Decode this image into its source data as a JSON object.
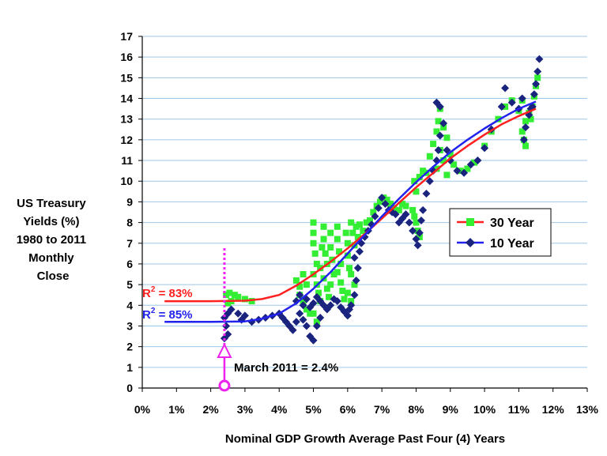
{
  "chart_data": {
    "type": "scatter",
    "title": "",
    "ylabel_lines": [
      "US Treasury",
      "Yields (%)",
      "1980 to 2011",
      "Monthly",
      "Close"
    ],
    "xlabel": "Nominal GDP Growth Average Past Four (4) Years",
    "xlim": [
      0,
      13
    ],
    "ylim": [
      0,
      17
    ],
    "x_ticks": [
      0,
      1,
      2,
      3,
      4,
      5,
      6,
      7,
      8,
      9,
      10,
      11,
      12,
      13
    ],
    "x_tick_labels": [
      "0%",
      "1%",
      "2%",
      "3%",
      "4%",
      "5%",
      "6%",
      "7%",
      "8%",
      "9%",
      "10%",
      "11%",
      "12%",
      "13%"
    ],
    "y_ticks": [
      0,
      1,
      2,
      3,
      4,
      5,
      6,
      7,
      8,
      9,
      10,
      11,
      12,
      13,
      14,
      15,
      16,
      17
    ],
    "y_tick_labels": [
      "0",
      "1",
      "2",
      "3",
      "4",
      "5",
      "6",
      "7",
      "8",
      "9",
      "10",
      "11",
      "12",
      "13",
      "14",
      "15",
      "16",
      "17"
    ],
    "grid": "horizontal",
    "legend_position": "right-middle",
    "series": [
      {
        "name": "30 Year",
        "color": "#33ee33",
        "marker": "square",
        "points": [
          [
            2.45,
            4.5
          ],
          [
            2.55,
            4.6
          ],
          [
            2.7,
            4.5
          ],
          [
            2.8,
            4.4
          ],
          [
            2.6,
            4.2
          ],
          [
            3.0,
            4.3
          ],
          [
            3.2,
            4.2
          ],
          [
            2.5,
            4.1
          ],
          [
            4.5,
            5.2
          ],
          [
            4.6,
            4.9
          ],
          [
            4.7,
            5.5
          ],
          [
            4.8,
            5.0
          ],
          [
            4.6,
            4.5
          ],
          [
            4.7,
            4.2
          ],
          [
            4.8,
            3.8
          ],
          [
            4.9,
            3.6
          ],
          [
            5.0,
            8.0
          ],
          [
            5.0,
            7.5
          ],
          [
            5.0,
            7.0
          ],
          [
            5.05,
            6.5
          ],
          [
            5.1,
            6.0
          ],
          [
            5.0,
            5.5
          ],
          [
            5.1,
            5.0
          ],
          [
            5.15,
            4.6
          ],
          [
            5.2,
            4.2
          ],
          [
            5.0,
            3.6
          ],
          [
            5.1,
            3.2
          ],
          [
            5.2,
            5.8
          ],
          [
            5.25,
            6.8
          ],
          [
            5.3,
            7.8
          ],
          [
            5.3,
            7.2
          ],
          [
            5.35,
            6.5
          ],
          [
            5.4,
            6.0
          ],
          [
            5.3,
            5.3
          ],
          [
            5.4,
            4.8
          ],
          [
            5.45,
            4.4
          ],
          [
            5.5,
            7.5
          ],
          [
            5.5,
            6.8
          ],
          [
            5.55,
            6.2
          ],
          [
            5.6,
            5.5
          ],
          [
            5.5,
            5.0
          ],
          [
            5.7,
            7.8
          ],
          [
            5.7,
            7.2
          ],
          [
            5.75,
            6.6
          ],
          [
            5.8,
            6.0
          ],
          [
            5.7,
            5.6
          ],
          [
            5.8,
            5.1
          ],
          [
            5.85,
            4.7
          ],
          [
            5.9,
            4.3
          ],
          [
            5.95,
            7.5
          ],
          [
            6.0,
            7.0
          ],
          [
            6.0,
            6.4
          ],
          [
            6.05,
            5.8
          ],
          [
            6.1,
            8.0
          ],
          [
            6.15,
            7.5
          ],
          [
            6.2,
            6.9
          ],
          [
            6.1,
            5.5
          ],
          [
            6.2,
            5.0
          ],
          [
            6.0,
            4.6
          ],
          [
            6.1,
            4.2
          ],
          [
            6.25,
            7.8
          ],
          [
            6.3,
            7.3
          ],
          [
            6.35,
            7.9
          ],
          [
            6.45,
            7.6
          ],
          [
            6.55,
            8.0
          ],
          [
            6.65,
            8.1
          ],
          [
            6.75,
            8.5
          ],
          [
            6.85,
            8.8
          ],
          [
            6.95,
            9.0
          ],
          [
            7.05,
            9.2
          ],
          [
            7.15,
            9.1
          ],
          [
            7.25,
            8.9
          ],
          [
            7.35,
            8.7
          ],
          [
            7.5,
            8.6
          ],
          [
            7.6,
            8.9
          ],
          [
            7.7,
            8.8
          ],
          [
            7.9,
            8.6
          ],
          [
            7.95,
            8.3
          ],
          [
            8.0,
            8.0
          ],
          [
            8.05,
            7.6
          ],
          [
            8.1,
            7.3
          ],
          [
            8.0,
            9.5
          ],
          [
            7.95,
            10.0
          ],
          [
            8.1,
            10.2
          ],
          [
            8.2,
            10.5
          ],
          [
            8.3,
            10.4
          ],
          [
            8.4,
            11.2
          ],
          [
            8.5,
            11.8
          ],
          [
            8.6,
            12.4
          ],
          [
            8.65,
            12.9
          ],
          [
            8.7,
            13.5
          ],
          [
            8.8,
            12.6
          ],
          [
            8.9,
            12.1
          ],
          [
            8.7,
            11.5
          ],
          [
            8.8,
            11.0
          ],
          [
            8.6,
            10.6
          ],
          [
            8.9,
            10.3
          ],
          [
            9.0,
            11.3
          ],
          [
            9.1,
            10.8
          ],
          [
            9.3,
            10.5
          ],
          [
            9.5,
            10.6
          ],
          [
            9.7,
            10.9
          ],
          [
            10.0,
            11.7
          ],
          [
            10.2,
            12.4
          ],
          [
            10.4,
            13.0
          ],
          [
            10.6,
            13.6
          ],
          [
            10.8,
            13.9
          ],
          [
            11.0,
            13.4
          ],
          [
            11.1,
            13.9
          ],
          [
            11.2,
            12.9
          ],
          [
            11.3,
            13.3
          ],
          [
            11.35,
            13.0
          ],
          [
            11.4,
            13.6
          ],
          [
            11.45,
            14.1
          ],
          [
            11.5,
            14.6
          ],
          [
            11.55,
            15.0
          ],
          [
            11.1,
            12.4
          ],
          [
            11.15,
            12.0
          ],
          [
            11.2,
            11.7
          ]
        ]
      },
      {
        "name": "10 Year",
        "color": "#1a237e",
        "marker": "diamond",
        "points": [
          [
            2.4,
            3.4
          ],
          [
            2.45,
            3.0
          ],
          [
            2.5,
            2.6
          ],
          [
            2.4,
            2.4
          ],
          [
            2.5,
            3.6
          ],
          [
            2.6,
            3.8
          ],
          [
            2.8,
            3.6
          ],
          [
            3.0,
            3.5
          ],
          [
            2.9,
            3.3
          ],
          [
            3.2,
            3.2
          ],
          [
            3.4,
            3.3
          ],
          [
            3.6,
            3.4
          ],
          [
            3.8,
            3.5
          ],
          [
            4.0,
            3.6
          ],
          [
            4.1,
            3.4
          ],
          [
            4.2,
            3.2
          ],
          [
            4.3,
            3.0
          ],
          [
            4.4,
            2.8
          ],
          [
            4.5,
            3.2
          ],
          [
            4.6,
            3.6
          ],
          [
            4.7,
            3.3
          ],
          [
            4.8,
            3.0
          ],
          [
            4.9,
            2.5
          ],
          [
            5.0,
            2.3
          ],
          [
            5.1,
            3.0
          ],
          [
            5.2,
            3.4
          ],
          [
            4.5,
            4.2
          ],
          [
            4.6,
            4.5
          ],
          [
            4.7,
            4.0
          ],
          [
            4.8,
            4.3
          ],
          [
            4.9,
            3.9
          ],
          [
            5.0,
            4.1
          ],
          [
            5.1,
            4.4
          ],
          [
            5.2,
            4.2
          ],
          [
            5.3,
            4.0
          ],
          [
            5.4,
            3.8
          ],
          [
            5.5,
            4.0
          ],
          [
            5.6,
            4.3
          ],
          [
            5.7,
            4.2
          ],
          [
            5.8,
            3.9
          ],
          [
            5.9,
            3.7
          ],
          [
            6.0,
            3.5
          ],
          [
            6.05,
            3.8
          ],
          [
            6.1,
            4.0
          ],
          [
            6.2,
            4.5
          ],
          [
            6.25,
            5.2
          ],
          [
            6.3,
            5.8
          ],
          [
            6.2,
            6.3
          ],
          [
            6.35,
            6.6
          ],
          [
            6.4,
            7.0
          ],
          [
            6.5,
            7.3
          ],
          [
            6.6,
            7.6
          ],
          [
            6.7,
            7.9
          ],
          [
            6.8,
            8.3
          ],
          [
            6.9,
            8.7
          ],
          [
            7.0,
            9.2
          ],
          [
            7.1,
            8.9
          ],
          [
            7.2,
            8.6
          ],
          [
            7.3,
            8.5
          ],
          [
            7.4,
            8.4
          ],
          [
            7.5,
            8.0
          ],
          [
            7.6,
            8.2
          ],
          [
            7.7,
            8.4
          ],
          [
            7.8,
            8.0
          ],
          [
            7.9,
            7.6
          ],
          [
            8.0,
            7.2
          ],
          [
            8.05,
            6.9
          ],
          [
            8.1,
            7.5
          ],
          [
            8.15,
            8.1
          ],
          [
            8.2,
            8.6
          ],
          [
            8.3,
            9.4
          ],
          [
            8.4,
            10.0
          ],
          [
            8.5,
            10.5
          ],
          [
            8.6,
            11.0
          ],
          [
            8.65,
            11.5
          ],
          [
            8.7,
            12.2
          ],
          [
            8.8,
            12.8
          ],
          [
            8.6,
            13.8
          ],
          [
            8.7,
            13.6
          ],
          [
            8.9,
            11.5
          ],
          [
            9.0,
            11.0
          ],
          [
            9.2,
            10.5
          ],
          [
            9.4,
            10.4
          ],
          [
            9.6,
            10.8
          ],
          [
            9.8,
            11.0
          ],
          [
            10.0,
            11.6
          ],
          [
            10.2,
            12.5
          ],
          [
            10.5,
            13.6
          ],
          [
            10.6,
            14.5
          ],
          [
            10.8,
            13.8
          ],
          [
            11.0,
            13.5
          ],
          [
            11.1,
            14.0
          ],
          [
            11.2,
            12.6
          ],
          [
            11.3,
            13.2
          ],
          [
            11.4,
            13.6
          ],
          [
            11.45,
            14.2
          ],
          [
            11.5,
            14.7
          ],
          [
            11.55,
            15.3
          ],
          [
            11.6,
            15.9
          ],
          [
            11.35,
            13.5
          ],
          [
            11.15,
            12.0
          ]
        ]
      }
    ],
    "fit_curves": [
      {
        "name": "30 Year fit",
        "color": "#ff2020",
        "points": [
          [
            0.65,
            4.2
          ],
          [
            2.0,
            4.2
          ],
          [
            3.0,
            4.22
          ],
          [
            3.5,
            4.3
          ],
          [
            4.0,
            4.5
          ],
          [
            4.5,
            4.95
          ],
          [
            5.0,
            5.5
          ],
          [
            5.5,
            6.1
          ],
          [
            6.0,
            6.75
          ],
          [
            6.5,
            7.45
          ],
          [
            7.0,
            8.2
          ],
          [
            7.5,
            8.95
          ],
          [
            8.0,
            9.7
          ],
          [
            8.5,
            10.4
          ],
          [
            9.0,
            11.1
          ],
          [
            9.5,
            11.7
          ],
          [
            10.0,
            12.25
          ],
          [
            10.5,
            12.75
          ],
          [
            11.0,
            13.15
          ],
          [
            11.5,
            13.5
          ]
        ]
      },
      {
        "name": "10 Year fit",
        "color": "#2222ee",
        "points": [
          [
            0.65,
            3.2
          ],
          [
            2.0,
            3.2
          ],
          [
            3.0,
            3.22
          ],
          [
            3.5,
            3.35
          ],
          [
            4.0,
            3.6
          ],
          [
            4.5,
            4.1
          ],
          [
            5.0,
            4.8
          ],
          [
            5.5,
            5.6
          ],
          [
            6.0,
            6.5
          ],
          [
            6.5,
            7.4
          ],
          [
            7.0,
            8.3
          ],
          [
            7.5,
            9.15
          ],
          [
            8.0,
            9.95
          ],
          [
            8.5,
            10.7
          ],
          [
            9.0,
            11.4
          ],
          [
            9.5,
            12.0
          ],
          [
            10.0,
            12.55
          ],
          [
            10.5,
            13.05
          ],
          [
            11.0,
            13.5
          ],
          [
            11.5,
            13.85
          ]
        ]
      }
    ],
    "annotations": {
      "r2_30_prefix": "R",
      "r2_30_sup": "2",
      "r2_30_value": " = 83%",
      "r2_10_prefix": "R",
      "r2_10_sup": "2",
      "r2_10_value": " = 85%",
      "march_label": "March 2011 = 2.4%",
      "march_x": 2.4,
      "march_color": "#ee22ee"
    },
    "legend_entries": [
      "30 Year",
      "10 Year"
    ]
  }
}
